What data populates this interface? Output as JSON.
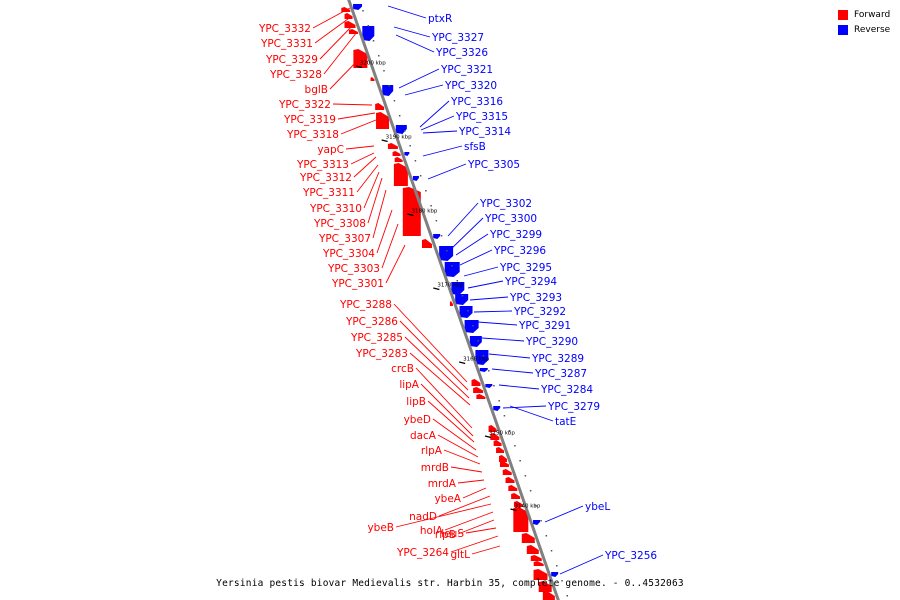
{
  "caption": "Yersinia pestis biovar Medievalis str. Harbin 35, complete genome. - 0..4532063",
  "legend": [
    {
      "label": "Forward",
      "color": "#ff0000"
    },
    {
      "label": "Reverse",
      "color": "#0000ff"
    }
  ],
  "colors": {
    "forward": "#ff0000",
    "reverse": "#0000ff",
    "backbone": "#808080"
  },
  "ticks": [
    "3200 kbp",
    "3190 kbp",
    "3180 kbp",
    "3170 kbp",
    "3160 kbp",
    "3150 kbp",
    "3140 kbp"
  ],
  "forward_labels": [
    "YPC_3332",
    "YPC_3331",
    "YPC_3329",
    "YPC_3328",
    "bglB",
    "YPC_3322",
    "YPC_3319",
    "YPC_3318",
    "yapC",
    "YPC_3313",
    "YPC_3312",
    "YPC_3311",
    "YPC_3310",
    "YPC_3308",
    "YPC_3307",
    "YPC_3304",
    "YPC_3303",
    "YPC_3301",
    "YPC_3288",
    "YPC_3286",
    "YPC_3285",
    "YPC_3283",
    "crcB",
    "lipA",
    "lipB",
    "ybeD",
    "dacA",
    "rlpA",
    "mrdB",
    "mrdA",
    "ybeA",
    "nadD",
    "ybeB",
    "holA",
    "rlpB",
    "leuS",
    "YPC_3264",
    "gltL"
  ],
  "reverse_labels": [
    "ptxR",
    "YPC_3327",
    "YPC_3326",
    "YPC_3321",
    "YPC_3320",
    "YPC_3316",
    "YPC_3315",
    "YPC_3314",
    "sfsB",
    "YPC_3305",
    "YPC_3302",
    "YPC_3300",
    "YPC_3299",
    "YPC_3296",
    "YPC_3295",
    "YPC_3294",
    "YPC_3293",
    "YPC_3292",
    "YPC_3291",
    "YPC_3290",
    "YPC_3289",
    "YPC_3287",
    "YPC_3284",
    "YPC_3279",
    "tatE",
    "ybeL",
    "YPC_3256"
  ]
}
